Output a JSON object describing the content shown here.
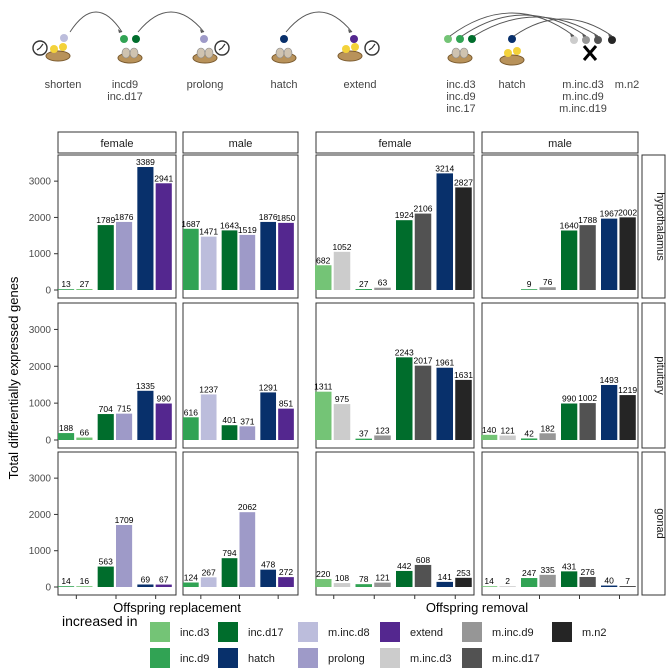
{
  "chart_data": {
    "type": "bar",
    "ylabel": "Total differentially expressed genes",
    "ylim": [
      0,
      3500
    ],
    "yticks": [
      0,
      1000,
      2000,
      3000
    ],
    "panel_columns": [
      {
        "group": "Offspring replacement",
        "sex": "female"
      },
      {
        "group": "Offspring replacement",
        "sex": "male"
      },
      {
        "group": "Offspring removal",
        "sex": "female"
      },
      {
        "group": "Offspring removal",
        "sex": "male"
      }
    ],
    "panel_rows": [
      "hypothalamus",
      "pituitary",
      "gonad"
    ],
    "group_labels": [
      "Offspring replacement",
      "Offspring removal"
    ],
    "comparisons": {
      "Offspring replacement": [
        {
          "label": "shorten",
          "bars": [
            "inc.d9",
            "inc.d3"
          ]
        },
        {
          "label": "incd9 inc.d17",
          "bars": [
            "inc.d17",
            "m.inc.d8"
          ]
        },
        {
          "label": "prolong",
          "bars": [
            "inc.d17",
            "prolong"
          ]
        },
        {
          "label": "hatch extend",
          "bars": [
            "hatch",
            "extend"
          ]
        }
      ],
      "Offspring removal": [
        {
          "label": "inc.d3",
          "bars": [
            "inc.d3",
            "m.inc.d3"
          ]
        },
        {
          "label": "inc.d9",
          "bars": [
            "inc.d9",
            "m.inc.d9"
          ]
        },
        {
          "label": "inc.d17",
          "bars": [
            "inc.d17",
            "m.inc.d17"
          ]
        },
        {
          "label": "hatch m.n2",
          "bars": [
            "hatch",
            "m.n2"
          ]
        }
      ]
    },
    "values": {
      "hypothalamus": {
        "replacement_female": [
          13,
          27,
          1789,
          1876,
          3389,
          2941
        ],
        "replacement_male": [
          1687,
          1471,
          1643,
          1519,
          1876,
          1850
        ],
        "removal_female": [
          682,
          1052,
          27,
          63,
          1924,
          2106,
          3214,
          2827
        ],
        "removal_male": [
          null,
          null,
          9,
          76,
          1640,
          1788,
          1967,
          2002
        ]
      },
      "pituitary": {
        "replacement_female": [
          188,
          66,
          704,
          715,
          1335,
          990
        ],
        "replacement_male": [
          616,
          1237,
          401,
          371,
          1291,
          851
        ],
        "removal_female": [
          1311,
          975,
          37,
          123,
          2243,
          2017,
          1961,
          1631
        ],
        "removal_male": [
          140,
          121,
          42,
          182,
          990,
          1002,
          1493,
          1219
        ]
      },
      "gonad": {
        "replacement_female": [
          14,
          16,
          563,
          1709,
          69,
          67
        ],
        "replacement_male": [
          124,
          267,
          794,
          2062,
          478,
          272
        ],
        "removal_female": [
          220,
          108,
          78,
          121,
          442,
          608,
          141,
          253
        ],
        "removal_male": [
          14,
          2,
          247,
          335,
          431,
          276,
          40,
          7
        ]
      }
    },
    "bar_slots": {
      "replacement": [
        0,
        1,
        2,
        3,
        4,
        5
      ],
      "removal": [
        0,
        1,
        2,
        3,
        4,
        5,
        6,
        7
      ]
    },
    "bar_series": {
      "replacement": [
        "inc.d9",
        "inc.d3",
        "inc.d17",
        "prolong",
        "hatch",
        "extend"
      ],
      "replacement_male": [
        "inc.d9",
        "m.inc.d8",
        "inc.d17",
        "prolong",
        "hatch",
        "extend"
      ],
      "removal": [
        "inc.d3",
        "m.inc.d3",
        "inc.d9",
        "m.inc.d9",
        "inc.d17",
        "m.inc.d17",
        "hatch",
        "m.n2"
      ]
    },
    "legend": {
      "title": "increased in",
      "placement": "bottom",
      "entries": [
        {
          "name": "inc.d3",
          "color": "#74c476"
        },
        {
          "name": "inc.d9",
          "color": "#31a354"
        },
        {
          "name": "inc.d17",
          "color": "#006d2c"
        },
        {
          "name": "hatch",
          "color": "#08306b"
        },
        {
          "name": "m.inc.d8",
          "color": "#bcbddc"
        },
        {
          "name": "prolong",
          "color": "#9e9ac8"
        },
        {
          "name": "extend",
          "color": "#54278f"
        },
        {
          "name": "m.inc.d3",
          "color": "#cccccc"
        },
        {
          "name": "m.inc.d9",
          "color": "#969696"
        },
        {
          "name": "m.inc.d17",
          "color": "#525252"
        },
        {
          "name": "m.n2",
          "color": "#252525"
        }
      ]
    },
    "header_labels": [
      {
        "text": [
          "shorten"
        ]
      },
      {
        "text": [
          "incd9",
          "inc.d17"
        ]
      },
      {
        "text": [
          "prolong"
        ]
      },
      {
        "text": [
          "hatch"
        ]
      },
      {
        "text": [
          "extend"
        ]
      },
      {
        "text": [
          "inc.d3",
          "inc.d9",
          "inc.17"
        ]
      },
      {
        "text": [
          "hatch"
        ]
      },
      {
        "text": [
          "m.inc.d3",
          "m.inc.d9",
          "m.inc.d19"
        ]
      },
      {
        "text": [
          "m.n2"
        ]
      }
    ]
  }
}
